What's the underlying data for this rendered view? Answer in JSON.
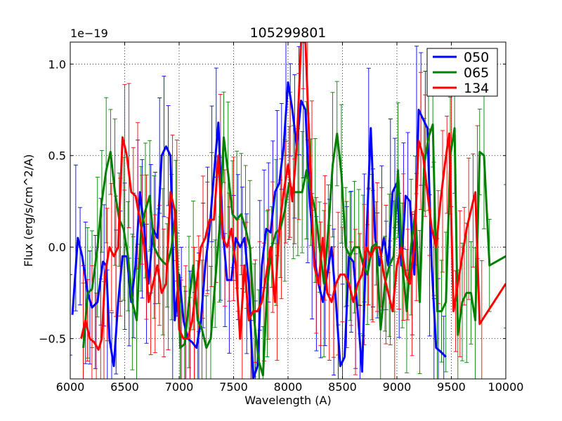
{
  "chart_data": {
    "type": "line",
    "title": "105299801",
    "xlabel": "Wavelength (A)",
    "ylabel": "Flux (erg/s/cm^2/A)",
    "offset_text": "1e−19",
    "xlim": [
      6000,
      10000
    ],
    "ylim": [
      -0.72,
      1.12
    ],
    "xticks": [
      6000,
      6500,
      7000,
      7500,
      8000,
      8500,
      9000,
      9500,
      10000
    ],
    "yticks": [
      -0.5,
      0.0,
      0.5,
      1.0
    ],
    "ytick_labels": [
      "−0.5",
      "0.0",
      "0.5",
      "1.0"
    ],
    "grid": true,
    "legend_position": "top-right",
    "series": [
      {
        "name": "050",
        "color": "#0000ff",
        "x": [
          6020,
          6070,
          6110,
          6160,
          6200,
          6250,
          6300,
          6330,
          6360,
          6400,
          6440,
          6480,
          6520,
          6560,
          6600,
          6640,
          6680,
          6720,
          6760,
          6800,
          6840,
          6880,
          6920,
          6960,
          7000,
          7040,
          7080,
          7120,
          7160,
          7200,
          7240,
          7280,
          7320,
          7360,
          7400,
          7440,
          7480,
          7520,
          7560,
          7600,
          7640,
          7680,
          7720,
          7760,
          7800,
          7840,
          7880,
          7920,
          7960,
          8000,
          8040,
          8080,
          8120,
          8160,
          8200,
          8240,
          8280,
          8320,
          8360,
          8400,
          8440,
          8480,
          8520,
          8560,
          8600,
          8640,
          8680,
          8720,
          8760,
          8800,
          8840,
          8880,
          8920,
          8960,
          9000,
          9040,
          9080,
          9120,
          9160,
          9200,
          9240,
          9280,
          9320,
          9360,
          9400,
          9450
        ],
        "y": [
          -0.37,
          0.05,
          -0.05,
          -0.25,
          -0.33,
          -0.3,
          -0.08,
          -0.1,
          -0.5,
          -0.65,
          -0.3,
          -0.05,
          -0.05,
          -0.3,
          -0.1,
          0.3,
          0.1,
          -0.2,
          0.1,
          0.05,
          0.5,
          0.55,
          0.5,
          -0.4,
          -0.15,
          -0.4,
          -0.5,
          -0.52,
          -0.55,
          -0.4,
          -0.1,
          0.1,
          0.4,
          0.68,
          0.1,
          -0.18,
          -0.18,
          0.05,
          0.0,
          0.05,
          -0.2,
          -0.72,
          -0.65,
          -0.1,
          0.1,
          0.08,
          0.3,
          0.35,
          0.55,
          0.9,
          0.75,
          0.55,
          0.8,
          0.75,
          0.25,
          -0.05,
          -0.2,
          -0.3,
          -0.15,
          0.0,
          -0.3,
          -0.65,
          -0.6,
          -0.05,
          -0.08,
          -0.35,
          -0.68,
          0.05,
          0.65,
          0.05,
          -0.1,
          0.05,
          -0.1,
          0.3,
          0.35,
          -0.1,
          0.28,
          0.25,
          -0.15,
          0.75,
          0.7,
          0.65,
          -0.1,
          -0.55,
          -0.57,
          -0.6
        ]
      },
      {
        "name": "065",
        "color": "#008000",
        "x": [
          6120,
          6160,
          6200,
          6250,
          6290,
          6330,
          6370,
          6410,
          6450,
          6490,
          6530,
          6570,
          6610,
          6650,
          6690,
          6730,
          6770,
          6810,
          6850,
          6890,
          6930,
          6970,
          7010,
          7050,
          7090,
          7130,
          7170,
          7210,
          7250,
          7290,
          7330,
          7370,
          7410,
          7450,
          7490,
          7530,
          7570,
          7610,
          7650,
          7690,
          7730,
          7770,
          7810,
          7850,
          7890,
          7930,
          7970,
          8010,
          8050,
          8090,
          8130,
          8170,
          8210,
          8250,
          8290,
          8330,
          8370,
          8410,
          8450,
          8490,
          8530,
          8570,
          8610,
          8650,
          8690,
          8730,
          8770,
          8810,
          8850,
          8890,
          8930,
          8970,
          9010,
          9050,
          9090,
          9130,
          9170,
          9210,
          9250,
          9290,
          9330,
          9370,
          9410,
          9450,
          9490,
          9530,
          9560,
          9600,
          9640,
          9680,
          9720,
          9760,
          9800,
          9850,
          10000
        ],
        "y": [
          -0.55,
          -0.25,
          -0.23,
          0.0,
          0.25,
          0.42,
          0.52,
          0.3,
          0.15,
          0.1,
          -0.05,
          -0.3,
          -0.4,
          0.1,
          0.2,
          0.28,
          0.0,
          -0.05,
          -0.08,
          -0.1,
          0.0,
          0.2,
          -0.55,
          -0.53,
          -0.3,
          -0.1,
          -0.4,
          -0.45,
          -0.55,
          -0.5,
          -0.2,
          0.1,
          0.6,
          0.4,
          0.18,
          0.15,
          0.18,
          0.1,
          0.0,
          -0.4,
          -0.62,
          -0.7,
          -0.2,
          0.0,
          0.08,
          0.1,
          0.2,
          0.35,
          0.3,
          0.3,
          0.3,
          0.42,
          0.3,
          0.2,
          0.0,
          -0.2,
          0.1,
          0.45,
          0.62,
          0.4,
          0.0,
          -0.05,
          0.0,
          0.0,
          -0.1,
          -0.15,
          0.0,
          0.02,
          -0.45,
          -0.2,
          -0.1,
          -0.05,
          0.42,
          -0.1,
          -0.35,
          0.0,
          0.2,
          -0.3,
          0.45,
          0.6,
          0.67,
          -0.35,
          -0.35,
          -0.3,
          0.5,
          0.65,
          -0.48,
          -0.3,
          -0.25,
          -0.25,
          -0.4,
          0.52,
          0.5,
          -0.1,
          -0.05
        ]
      },
      {
        "name": "134",
        "color": "#ff0000",
        "x": [
          6100,
          6140,
          6180,
          6220,
          6260,
          6290,
          6320,
          6360,
          6400,
          6440,
          6480,
          6520,
          6560,
          6600,
          6640,
          6680,
          6720,
          6760,
          6800,
          6840,
          6880,
          6920,
          6960,
          7000,
          7040,
          7080,
          7120,
          7160,
          7200,
          7240,
          7280,
          7320,
          7360,
          7400,
          7440,
          7480,
          7520,
          7560,
          7600,
          7640,
          7680,
          7720,
          7760,
          7800,
          7840,
          7880,
          7920,
          7960,
          8000,
          8040,
          8080,
          8120,
          8160,
          8200,
          8240,
          8280,
          8320,
          8360,
          8400,
          8440,
          8480,
          8520,
          8560,
          8600,
          8640,
          8680,
          8720,
          8760,
          8800,
          8840,
          8880,
          8920,
          8960,
          9000,
          9040,
          9080,
          9120,
          9160,
          9200,
          9240,
          9280,
          9320,
          9360,
          9400,
          9440,
          9480,
          9520,
          9560,
          9600,
          9640,
          9680,
          9720,
          9760,
          10000
        ],
        "y": [
          -0.5,
          -0.4,
          -0.5,
          -0.52,
          -0.56,
          -0.5,
          -0.15,
          0.0,
          -0.05,
          0.0,
          0.6,
          0.5,
          0.3,
          0.28,
          0.15,
          0.0,
          -0.3,
          -0.2,
          -0.1,
          -0.25,
          -0.2,
          0.3,
          0.2,
          -0.45,
          -0.5,
          -0.5,
          -0.4,
          -0.2,
          0.0,
          0.05,
          0.15,
          0.15,
          0.5,
          0.05,
          0.0,
          0.1,
          -0.1,
          -0.5,
          -0.1,
          -0.4,
          -0.35,
          -0.35,
          -0.3,
          -0.15,
          0.0,
          -0.3,
          0.1,
          0.3,
          0.45,
          0.25,
          0.55,
          1.12,
          1.12,
          0.5,
          -0.1,
          -0.2,
          0.05,
          -0.25,
          -0.3,
          -0.2,
          -0.15,
          -0.15,
          -0.2,
          -0.3,
          -0.2,
          -0.15,
          0.0,
          -0.05,
          0.0,
          0.0,
          -0.15,
          -0.25,
          -0.35,
          -0.1,
          0.0,
          -0.15,
          -0.2,
          0.0,
          0.58,
          0.5,
          0.3,
          0.1,
          0.0,
          0.25,
          0.45,
          0.62,
          -0.35,
          -0.2,
          -0.05,
          0.1,
          0.2,
          0.3,
          -0.42,
          -0.2
        ]
      }
    ]
  }
}
